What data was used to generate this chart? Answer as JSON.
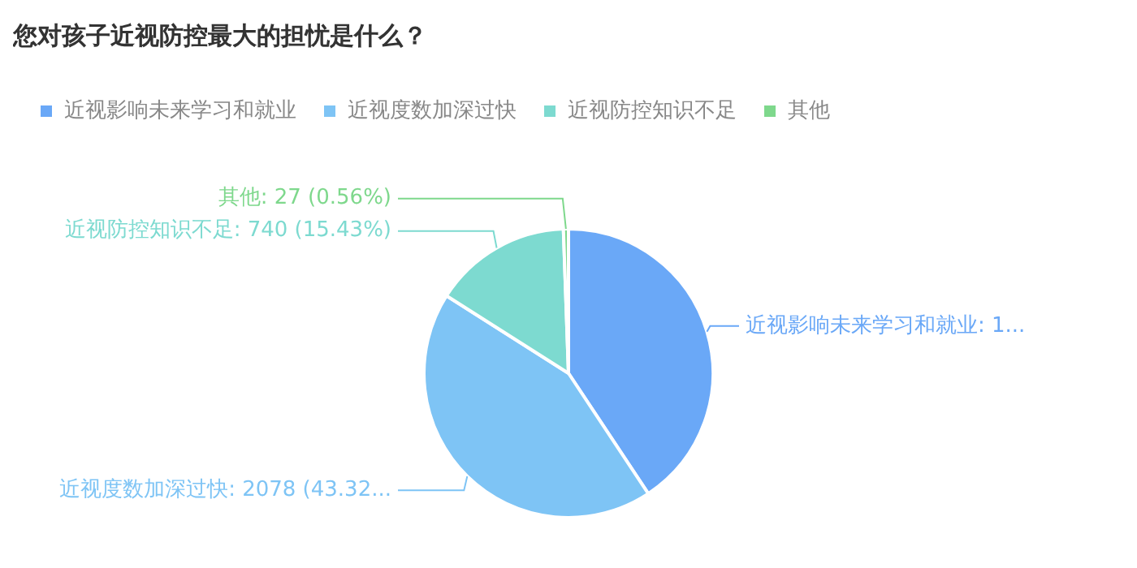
{
  "chart_data": {
    "type": "pie",
    "title": "您对孩子近视防控最大的担忧是什么？",
    "categories": [
      "近视影响未来学习和就业",
      "近视度数加深过快",
      "近视防控知识不足",
      "其他"
    ],
    "values": [
      1952,
      2078,
      740,
      27
    ],
    "colors": [
      "#6aa8f7",
      "#7ec4f5",
      "#7ddad0",
      "#7ed88c"
    ],
    "value_labels": [
      "近视影响未来学习和就业: 1...",
      "近视度数加深过快: 2078 (43.32...",
      "近视防控知识不足: 740 (15.43%)",
      "其他: 27 (0.56%)"
    ],
    "legend": "top left"
  }
}
